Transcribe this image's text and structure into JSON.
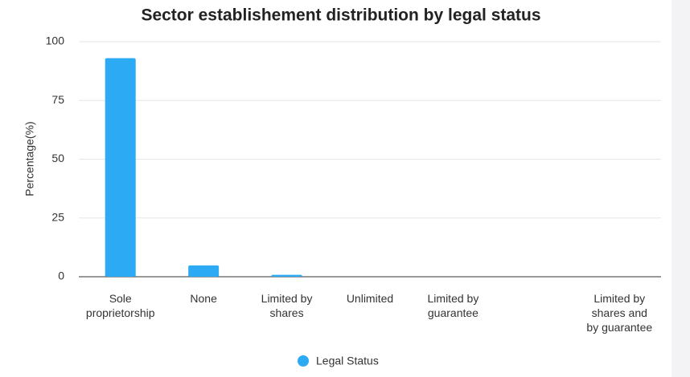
{
  "chart_data": {
    "type": "bar",
    "title": "Sector establishement distribution by legal status",
    "y_label": "Percentage(%)",
    "categories": [
      "Sole proprietorship",
      "None",
      "Limited by shares",
      "Unlimited",
      "Limited by guarantee",
      null,
      "Limited by shares and by guarantee"
    ],
    "series": [
      {
        "name": "Legal Status",
        "color": "#2daaf4",
        "values": [
          93,
          4.8,
          0.8,
          0,
          0,
          0,
          0
        ]
      }
    ],
    "ylim": [
      0,
      100
    ],
    "yticks": [
      0,
      25,
      50,
      75,
      100
    ],
    "grid": true,
    "legend": "bottom"
  }
}
